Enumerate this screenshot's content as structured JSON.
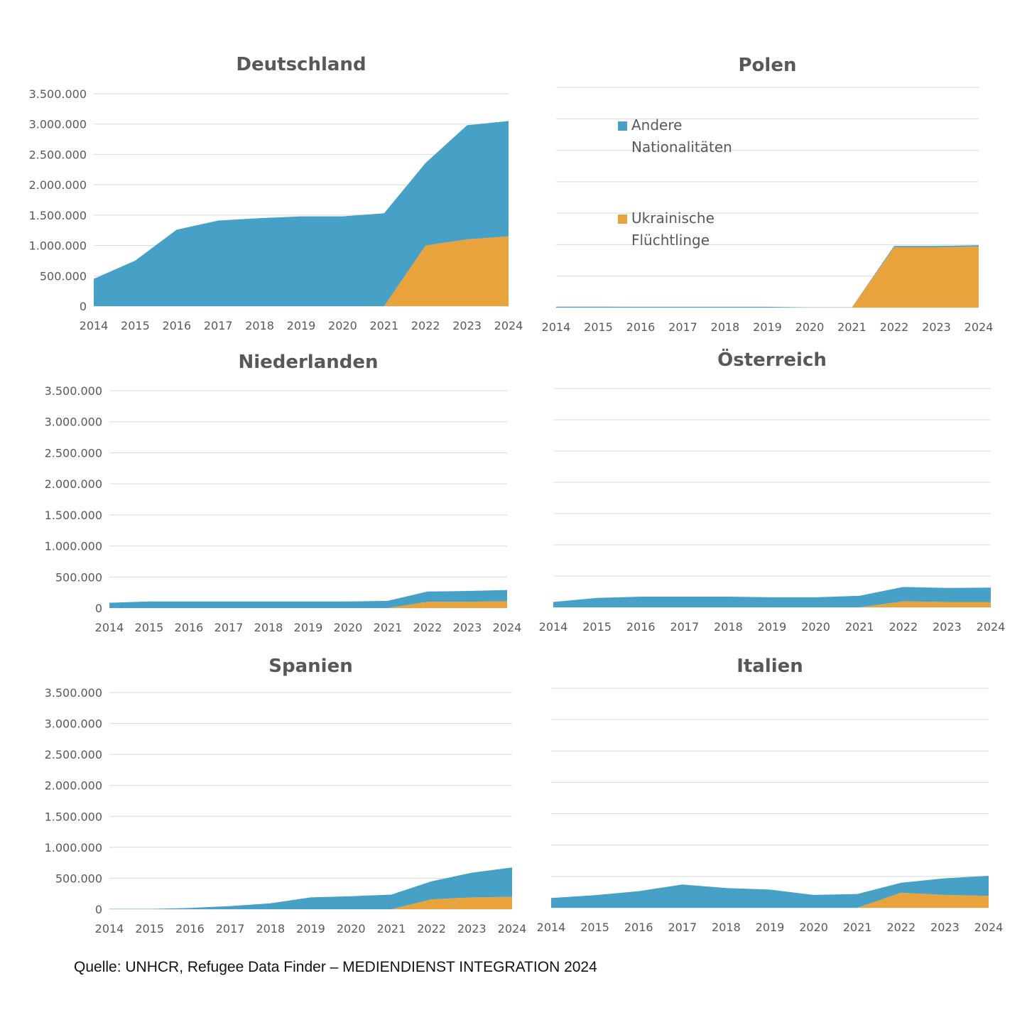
{
  "source": "Quelle: UNHCR, Refugee Data Finder – MEDIENDIENST INTEGRATION 2024",
  "colors": {
    "andere": "#47a1c6",
    "ukraine": "#e9a33c",
    "grid": "#d9d9d9",
    "text": "#595959"
  },
  "legend": [
    {
      "series": "andere",
      "lines": [
        "Andere",
        "Nationalitäten"
      ]
    },
    {
      "series": "ukraine",
      "lines": [
        "Ukrainische",
        "Flüchtlinge"
      ]
    }
  ],
  "chart_data": [
    {
      "type": "area",
      "title": "Deutschland",
      "x": [
        "2014",
        "2015",
        "2016",
        "2017",
        "2018",
        "2019",
        "2020",
        "2021",
        "2022",
        "2023",
        "2024"
      ],
      "ylim": [
        0,
        3500000
      ],
      "ytick_labels": [
        "0",
        "500.000",
        "1.000.000",
        "1.500.000",
        "2.000.000",
        "2.500.000",
        "3.000.000",
        "3.500.000"
      ],
      "stacked": true,
      "series": [
        {
          "name": "Ukrainische Flüchtlinge",
          "key": "ukraine",
          "values": [
            0,
            0,
            0,
            0,
            0,
            0,
            0,
            0,
            1000000,
            1100000,
            1150000
          ]
        },
        {
          "name": "Andere Nationalitäten",
          "key": "andere",
          "values": [
            450000,
            750000,
            1260000,
            1410000,
            1450000,
            1480000,
            1480000,
            1530000,
            1360000,
            1880000,
            1900000
          ]
        }
      ]
    },
    {
      "type": "area",
      "title": "Polen",
      "x": [
        "2014",
        "2015",
        "2016",
        "2017",
        "2018",
        "2019",
        "2020",
        "2021",
        "2022",
        "2023",
        "2024"
      ],
      "ylim": [
        0,
        3500000
      ],
      "ytick_labels": [],
      "stacked": true,
      "series": [
        {
          "name": "Ukrainische Flüchtlinge",
          "key": "ukraine",
          "values": [
            0,
            0,
            0,
            0,
            0,
            0,
            0,
            0,
            960000,
            960000,
            970000
          ]
        },
        {
          "name": "Andere Nationalitäten",
          "key": "andere",
          "values": [
            15000,
            15000,
            12000,
            12000,
            12000,
            12000,
            3000,
            3000,
            20000,
            20000,
            20000
          ]
        }
      ]
    },
    {
      "type": "area",
      "title": "Niederlanden",
      "x": [
        "2014",
        "2015",
        "2016",
        "2017",
        "2018",
        "2019",
        "2020",
        "2021",
        "2022",
        "2023",
        "2024"
      ],
      "ylim": [
        0,
        3500000
      ],
      "ytick_labels": [
        "0",
        "500.000",
        "1.000.000",
        "1.500.000",
        "2.000.000",
        "2.500.000",
        "3.000.000",
        "3.500.000"
      ],
      "stacked": true,
      "series": [
        {
          "name": "Ukrainische Flüchtlinge",
          "key": "ukraine",
          "values": [
            0,
            0,
            0,
            0,
            0,
            0,
            0,
            0,
            100000,
            100000,
            110000
          ]
        },
        {
          "name": "Andere Nationalitäten",
          "key": "andere",
          "values": [
            85000,
            105000,
            105000,
            105000,
            105000,
            105000,
            105000,
            115000,
            165000,
            175000,
            180000
          ]
        }
      ]
    },
    {
      "type": "area",
      "title": "Österreich",
      "x": [
        "2014",
        "2015",
        "2016",
        "2017",
        "2018",
        "2019",
        "2020",
        "2021",
        "2022",
        "2023",
        "2024"
      ],
      "ylim": [
        0,
        3500000
      ],
      "ytick_labels": [],
      "stacked": true,
      "series": [
        {
          "name": "Ukrainische Flüchtlinge",
          "key": "ukraine",
          "values": [
            0,
            0,
            0,
            0,
            0,
            0,
            0,
            0,
            95000,
            85000,
            85000
          ]
        },
        {
          "name": "Andere Nationalitäten",
          "key": "andere",
          "values": [
            85000,
            150000,
            170000,
            170000,
            170000,
            160000,
            160000,
            185000,
            230000,
            225000,
            230000
          ]
        }
      ]
    },
    {
      "type": "area",
      "title": "Spanien",
      "x": [
        "2014",
        "2015",
        "2016",
        "2017",
        "2018",
        "2019",
        "2020",
        "2021",
        "2022",
        "2023",
        "2024"
      ],
      "ylim": [
        0,
        3500000
      ],
      "ytick_labels": [
        "0",
        "500.000",
        "1.000.000",
        "1.500.000",
        "2.000.000",
        "2.500.000",
        "3.000.000",
        "3.500.000"
      ],
      "stacked": true,
      "series": [
        {
          "name": "Ukrainische Flüchtlinge",
          "key": "ukraine",
          "values": [
            0,
            0,
            0,
            0,
            0,
            0,
            0,
            0,
            160000,
            190000,
            200000
          ]
        },
        {
          "name": "Andere Nationalitäten",
          "key": "andere",
          "values": [
            5000,
            5000,
            20000,
            50000,
            95000,
            190000,
            210000,
            235000,
            290000,
            400000,
            475000
          ]
        }
      ]
    },
    {
      "type": "area",
      "title": "Italien",
      "x": [
        "2014",
        "2015",
        "2016",
        "2017",
        "2018",
        "2019",
        "2020",
        "2021",
        "2022",
        "2023",
        "2024"
      ],
      "ylim": [
        0,
        3500000
      ],
      "ytick_labels": [],
      "stacked": true,
      "series": [
        {
          "name": "Ukrainische Flüchtlinge",
          "key": "ukraine",
          "values": [
            0,
            0,
            0,
            0,
            0,
            0,
            0,
            0,
            240000,
            205000,
            190000
          ]
        },
        {
          "name": "Andere Nationalitäten",
          "key": "andere",
          "values": [
            155000,
            200000,
            265000,
            370000,
            315000,
            290000,
            205000,
            220000,
            160000,
            265000,
            320000
          ]
        }
      ]
    }
  ]
}
